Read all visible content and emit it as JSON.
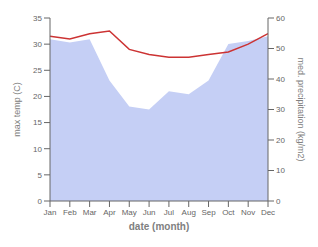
{
  "chart_data": {
    "type": "line",
    "categories": [
      "Jan",
      "Feb",
      "Mar",
      "Apr",
      "May",
      "Jun",
      "Jul",
      "Aug",
      "Sep",
      "Oct",
      "Nov",
      "Dec"
    ],
    "series": [
      {
        "type": "area",
        "color": "#c5cff5",
        "axis": "y2",
        "values": [
          53.0,
          52.0,
          53.0,
          39.5,
          31.0,
          30.0,
          36.0,
          35.0,
          39.5,
          51.5,
          52.5,
          54.0
        ]
      },
      {
        "type": "line",
        "color": "#cc3333",
        "values": [
          31.5,
          31.0,
          32.0,
          32.5,
          29.0,
          28.0,
          27.5,
          27.5,
          28.0,
          28.5,
          30.0,
          32.0
        ]
      }
    ],
    "xlabel": "date (month)",
    "ylabel": "max temp (C)",
    "y2label": "med. precipitation (kg/m2)",
    "ylim": [
      0,
      35
    ],
    "yticks": [
      0,
      5,
      10,
      15,
      20,
      25,
      30,
      35
    ],
    "y2lim": [
      0,
      60
    ],
    "y2ticks": [
      0,
      10,
      20,
      30,
      40,
      50,
      60
    ],
    "grid": false
  }
}
